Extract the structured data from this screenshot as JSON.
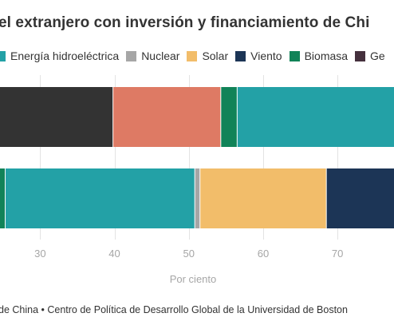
{
  "title": "el extranjero con inversión y financiamiento de Chi",
  "legend": [
    {
      "label": "Energía hidroeléctrica",
      "color": "#23a1a6"
    },
    {
      "label": "Nuclear",
      "color": "#a6a6a6"
    },
    {
      "label": "Solar",
      "color": "#f2bd6a"
    },
    {
      "label": "Viento",
      "color": "#1c3556"
    },
    {
      "label": "Biomasa",
      "color": "#118358"
    },
    {
      "label": "Ge",
      "color": "#45303d"
    }
  ],
  "source": "de China • Centro de Política de Desarrollo Global de la Universidad de Boston",
  "chart_data": {
    "type": "bar",
    "orientation": "horizontal",
    "stacked": true,
    "xlabel": "Por ciento",
    "xlim": [
      24.6,
      77.6
    ],
    "xticks": [
      30,
      40,
      50,
      60,
      70
    ],
    "grid": true,
    "rows": [
      {
        "segments": [
          {
            "color": "#333333",
            "start": 24.6,
            "end": 39.8
          },
          {
            "color": "#de7a64",
            "start": 39.8,
            "end": 54.3
          },
          {
            "color": "#118358",
            "start": 54.3,
            "end": 56.5
          },
          {
            "color": "#23a1a6",
            "start": 56.5,
            "end": 77.6
          }
        ]
      },
      {
        "segments": [
          {
            "color": "#118358",
            "start": 24.6,
            "end": 25.3
          },
          {
            "color": "#23a1a6",
            "start": 25.3,
            "end": 50.8
          },
          {
            "color": "#a6a6a6",
            "start": 50.8,
            "end": 51.5
          },
          {
            "color": "#f2bd6a",
            "start": 51.5,
            "end": 68.5
          },
          {
            "color": "#1c3556",
            "start": 68.5,
            "end": 77.6
          }
        ]
      }
    ]
  }
}
